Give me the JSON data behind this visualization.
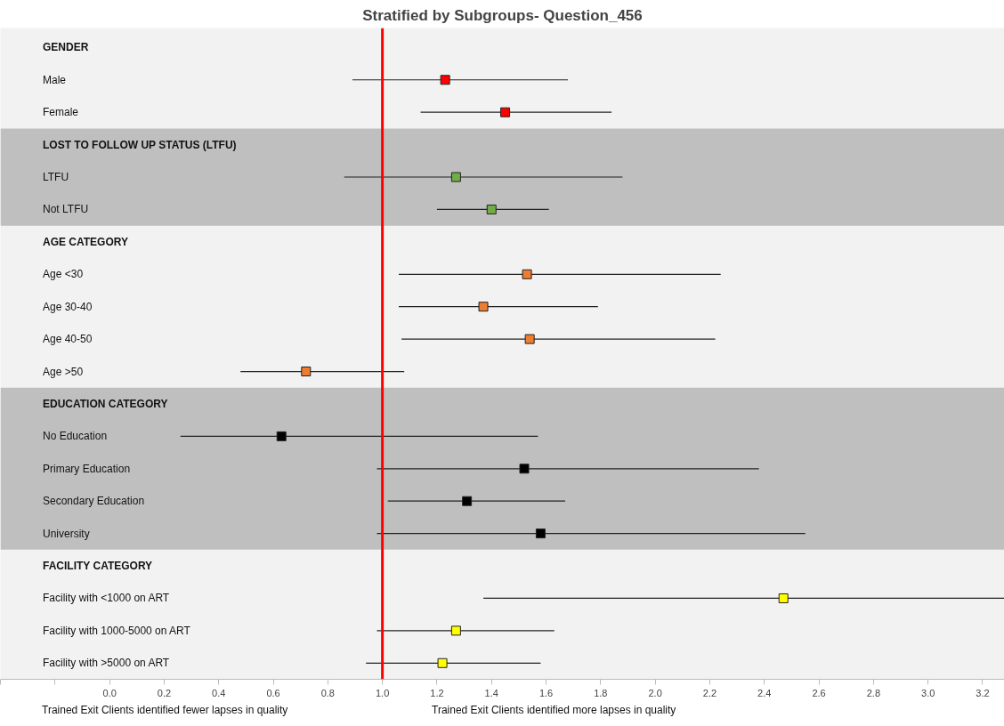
{
  "chart_data": {
    "type": "scatter",
    "orientation": "horizontal",
    "title": "Stratified by Subgroups- Question_456",
    "categories": [
      "GENDER",
      "Male",
      "Female",
      "LOST TO FOLLOW UP STATUS (LTFU)",
      "LTFU",
      "Not LTFU",
      "AGE CATEGORY",
      "Age <30",
      "Age 30-40",
      "Age 40-50",
      "Age >50",
      "EDUCATION CATEGORY",
      "No Education",
      "Primary Education",
      "Secondary Education",
      "University",
      "FACILITY CATEGORY",
      "Facility with <1000 on ART",
      "Facility with 1000-5000 on ART",
      "Facility with >5000 on ART"
    ],
    "values": [
      null,
      1.23,
      1.45,
      null,
      1.27,
      1.4,
      null,
      1.53,
      1.37,
      1.54,
      0.72,
      null,
      0.63,
      1.52,
      1.31,
      1.58,
      null,
      2.47,
      1.27,
      1.22
    ],
    "errors": [
      null,
      [
        0.89,
        1.68
      ],
      [
        1.14,
        1.84
      ],
      null,
      [
        0.86,
        1.88
      ],
      [
        1.2,
        1.61
      ],
      null,
      [
        1.06,
        2.24
      ],
      [
        1.06,
        1.79
      ],
      [
        1.07,
        2.22
      ],
      [
        0.48,
        1.08
      ],
      null,
      [
        0.26,
        1.57
      ],
      [
        0.98,
        2.38
      ],
      [
        1.02,
        1.67
      ],
      [
        0.98,
        2.55
      ],
      null,
      [
        1.37,
        3.28
      ],
      [
        0.98,
        1.63
      ],
      [
        0.94,
        1.58
      ]
    ],
    "colors": [
      null,
      "#ff0000",
      "#ff0000",
      null,
      "#70ad47",
      "#70ad47",
      null,
      "#ed7d31",
      "#ed7d31",
      "#ed7d31",
      "#ed7d31",
      null,
      "#000000",
      "#000000",
      "#000000",
      "#000000",
      null,
      "#ffff00",
      "#ffff00",
      "#ffff00"
    ],
    "marker": "square",
    "xlim": [
      -0.4,
      3.28
    ],
    "xticks": [
      {
        "value": -0.4,
        "label": null
      },
      {
        "value": -0.2,
        "label": null
      },
      {
        "value": 0,
        "label": "0.0"
      },
      0.2,
      0.4,
      0.6,
      0.8,
      {
        "value": 1,
        "label": "1.0"
      },
      1.2,
      1.4,
      1.6,
      1.8,
      {
        "value": 2,
        "label": "2.0"
      },
      2.2,
      2.4,
      2.6,
      2.8,
      {
        "value": 3,
        "label": "3.0"
      },
      3.2
    ],
    "ref_lines": [
      {
        "axis": "x",
        "value": 1,
        "color": "#ff0000"
      }
    ],
    "bands": [
      {
        "axis": "y",
        "from": "LOST TO FOLLOW UP STATUS (LTFU)",
        "to": "Not LTFU",
        "color": "#bfbfbf"
      },
      {
        "axis": "y",
        "from": "EDUCATION CATEGORY",
        "to": "University",
        "color": "#bfbfbf"
      }
    ],
    "grid": false,
    "annotations": [
      "Trained Exit Clients identified fewer lapses in quality",
      "Trained Exit Clients identified more lapses in quality"
    ]
  }
}
